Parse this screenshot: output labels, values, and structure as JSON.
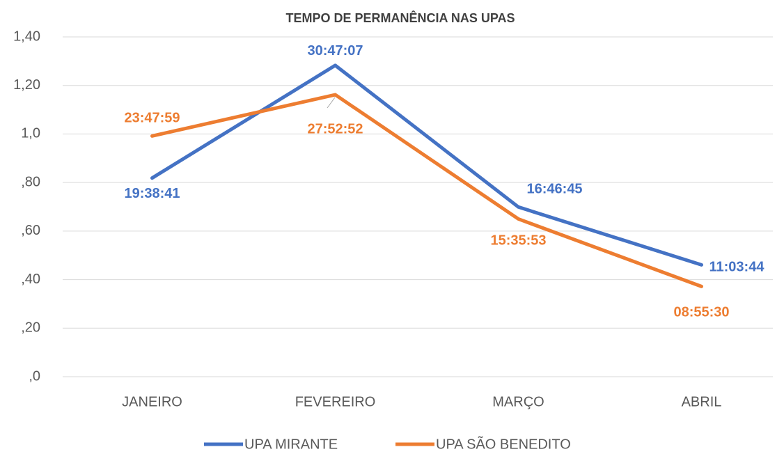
{
  "chart_data": {
    "type": "line",
    "title": "TEMPO DE PERMANÊNCIA NAS UPAS",
    "categories": [
      "JANEIRO",
      "FEVEREIRO",
      "MARÇO",
      "ABRIL"
    ],
    "series": [
      {
        "name": "UPA MIRANTE",
        "color": "#4472c4",
        "values": [
          0.81853,
          1.28272,
          0.69913,
          0.46093
        ],
        "value_labels": [
          "19:38:41",
          "30:47:07",
          "16:46:45",
          "11:03:44"
        ]
      },
      {
        "name": "UPA SÃO BENEDITO",
        "color": "#ed7d31",
        "values": [
          0.99166,
          1.16171,
          0.64992,
          0.37188
        ],
        "value_labels": [
          "23:47:59",
          "27:52:52",
          "15:35:53",
          "08:55:30"
        ]
      }
    ],
    "ylim": [
      0,
      1.4
    ],
    "yticks": [
      {
        "value": 0,
        "label": ",0"
      },
      {
        "value": 0.2,
        "label": ",20"
      },
      {
        "value": 0.4,
        "label": ",40"
      },
      {
        "value": 0.6,
        "label": ",60"
      },
      {
        "value": 0.8,
        "label": ",80"
      },
      {
        "value": 1.0,
        "label": "1,0"
      },
      {
        "value": 1.2,
        "label": "1,20"
      },
      {
        "value": 1.4,
        "label": "1,40"
      }
    ],
    "grid": true,
    "legend": "bottom"
  }
}
